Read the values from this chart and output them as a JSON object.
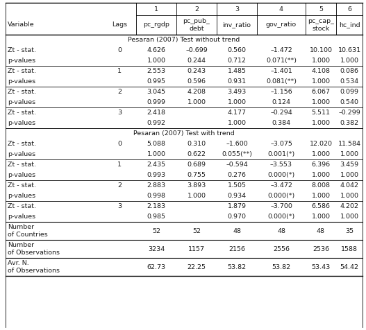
{
  "section1": "Pesaran (2007) Test without trend",
  "section2": "Pesaran (2007) Test with trend",
  "rows1": [
    [
      "Zt - stat.",
      "0",
      "4.626",
      "–0.699",
      "0.560",
      "–1.472",
      "10.100",
      "10.631"
    ],
    [
      "p-values",
      "",
      "1.000",
      "0.244",
      "0.712",
      "0.071(**)",
      "1.000",
      "1.000"
    ],
    [
      "Zt - stat.",
      "1",
      "2.553",
      "0.243",
      "1.485",
      "–1.401",
      "4.108",
      "0.086"
    ],
    [
      "p-values",
      "",
      "0.995",
      "0.596",
      "0.931",
      "0.081(**)",
      "1.000",
      "0.534"
    ],
    [
      "Zt - stat.",
      "2",
      "3.045",
      "4.208",
      "3.493",
      "–1.156",
      "6.067",
      "0.099"
    ],
    [
      "p-values",
      "",
      "0.999",
      "1.000",
      "1.000",
      "0.124",
      "1.000",
      "0.540"
    ],
    [
      "Zt - stat.",
      "3",
      "2.418",
      "",
      "4.177",
      "–0.294",
      "5.511",
      "–0.299"
    ],
    [
      "p-values",
      "",
      "0.992",
      "",
      "1.000",
      "0.384",
      "1.000",
      "0.382"
    ]
  ],
  "rows2": [
    [
      "Zt - stat.",
      "0",
      "5.088",
      "0.310",
      "–1.600",
      "–3.075",
      "12.020",
      "11.584"
    ],
    [
      "p-values",
      "",
      "1.000",
      "0.622",
      "0.055(**)",
      "0.001(*)",
      "1.000",
      "1.000"
    ],
    [
      "Zt - stat.",
      "1",
      "2.435",
      "0.689",
      "–0.594",
      "–3.553",
      "6.396",
      "3.459"
    ],
    [
      "p-values",
      "",
      "0.993",
      "0.755",
      "0.276",
      "0.000(*)",
      "1.000",
      "1.000"
    ],
    [
      "Zt - stat.",
      "2",
      "2.883",
      "3.893",
      "1.505",
      "–3.472",
      "8.008",
      "4.042"
    ],
    [
      "p-values",
      "",
      "0.998",
      "1.000",
      "0.934",
      "0.000(*)",
      "1.000",
      "1.000"
    ],
    [
      "Zt - stat.",
      "3",
      "2.183",
      "",
      "1.879",
      "–3.700",
      "6.586",
      "4.202"
    ],
    [
      "p-values",
      "",
      "0.985",
      "",
      "0.970",
      "0.000(*)",
      "1.000",
      "1.000"
    ]
  ],
  "footer": [
    [
      "Number\nof Countries",
      "",
      "52",
      "52",
      "48",
      "48",
      "48",
      "35"
    ],
    [
      "Number\nof Observations",
      "",
      "3234",
      "1157",
      "2156",
      "2556",
      "2536",
      "1588"
    ],
    [
      "Avr. N.\nof Observations",
      "",
      "62.73",
      "22.25",
      "53.82",
      "53.82",
      "53.43",
      "54.42"
    ]
  ],
  "bg_color": "#ffffff",
  "text_color": "#1a1a1a",
  "font_size": 6.8,
  "font_family": "DejaVu Sans"
}
